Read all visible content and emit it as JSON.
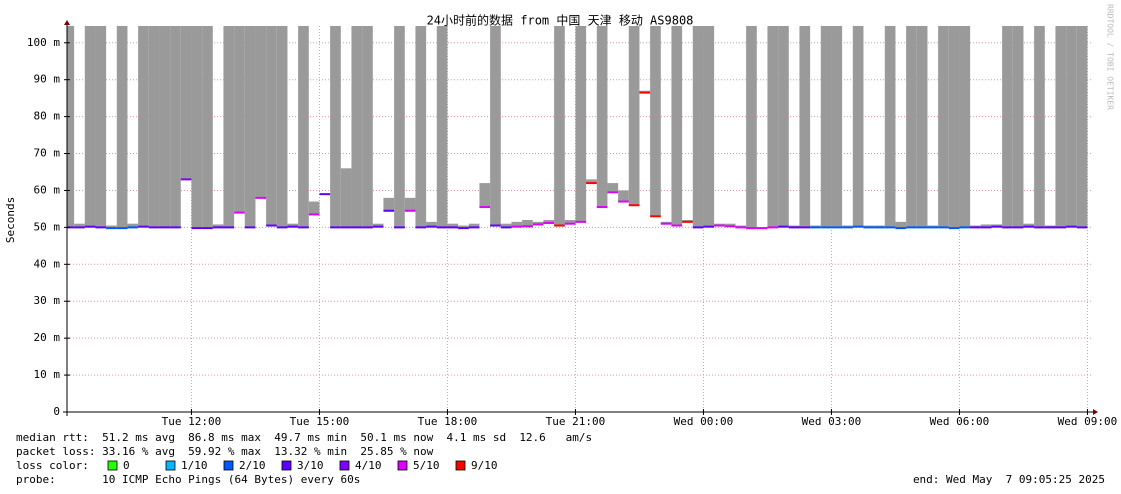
{
  "chart_data": {
    "type": "smokeping",
    "title": "24小时前的数据 from 中国 天津 移动 AS9808",
    "y_label": "Seconds",
    "watermark": "RRDTOOL / TOBI OETIKER",
    "xlim": [
      9.083,
      33.083
    ],
    "xticks": [
      {
        "value": 12,
        "label": "Tue 12:00"
      },
      {
        "value": 15,
        "label": "Tue 15:00"
      },
      {
        "value": 18,
        "label": "Tue 18:00"
      },
      {
        "value": 21,
        "label": "Tue 21:00"
      },
      {
        "value": 24,
        "label": "Wed 00:00"
      },
      {
        "value": 27,
        "label": "Wed 03:00"
      },
      {
        "value": 30,
        "label": "Wed 06:00"
      },
      {
        "value": 33,
        "label": "Wed 09:00"
      }
    ],
    "ylim": [
      0,
      0.104
    ],
    "yticks": [
      0,
      {
        "value": 0.01,
        "label": "10 m"
      },
      {
        "value": 0.02,
        "label": "20 m"
      },
      {
        "value": 0.03,
        "label": "30 m"
      },
      {
        "value": 0.04,
        "label": "40 m"
      },
      {
        "value": 0.05,
        "label": "50 m"
      },
      {
        "value": 0.06,
        "label": "60 m"
      },
      {
        "value": 0.07,
        "label": "70 m"
      },
      {
        "value": 0.08,
        "label": "80 m"
      },
      {
        "value": 0.09,
        "label": "90 m"
      },
      {
        "value": 0.1,
        "label": "100 m"
      }
    ],
    "grid": true,
    "smoke_color": "#9a9a9a",
    "x": [
      9.25,
      9.5,
      9.75,
      10,
      10.25,
      10.5,
      10.75,
      11,
      11.25,
      11.5,
      11.75,
      12,
      12.25,
      12.5,
      12.75,
      13,
      13.25,
      13.5,
      13.75,
      14,
      14.25,
      14.5,
      14.75,
      15,
      15.25,
      15.5,
      15.75,
      16,
      16.25,
      16.5,
      16.75,
      17,
      17.25,
      17.5,
      17.75,
      18,
      18.25,
      18.5,
      18.75,
      19,
      19.25,
      19.5,
      19.75,
      20,
      20.25,
      20.5,
      20.75,
      21,
      21.25,
      21.5,
      21.75,
      22,
      22.25,
      22.5,
      22.75,
      23,
      23.25,
      23.5,
      23.75,
      24,
      24.25,
      24.5,
      24.75,
      25,
      25.25,
      25.5,
      25.75,
      26,
      26.25,
      26.5,
      26.75,
      27,
      27.25,
      27.5,
      27.75,
      28,
      28.25,
      28.5,
      28.75,
      29,
      29.25,
      29.5,
      29.75,
      30,
      30.25,
      30.5,
      30.75,
      31,
      31.25,
      31.5,
      31.75,
      32,
      32.25,
      32.5,
      32.75,
      33
    ],
    "median": [
      0.05,
      0.05,
      0.0502,
      0.05,
      0.0498,
      0.0498,
      0.05,
      0.0502,
      0.05,
      0.05,
      0.05,
      0.063,
      0.0498,
      0.0498,
      0.05,
      0.05,
      0.054,
      0.05,
      0.058,
      0.0505,
      0.05,
      0.0502,
      0.05,
      0.0535,
      0.059,
      0.05,
      0.05,
      0.05,
      0.05,
      0.0502,
      0.0545,
      0.05,
      0.0545,
      0.05,
      0.0502,
      0.05,
      0.05,
      0.0498,
      0.05,
      0.0555,
      0.0505,
      0.05,
      0.0502,
      0.0503,
      0.0508,
      0.0512,
      0.0505,
      0.051,
      0.0515,
      0.062,
      0.0555,
      0.0595,
      0.057,
      0.056,
      0.0865,
      0.053,
      0.051,
      0.0505,
      0.0515,
      0.05,
      0.0502,
      0.0505,
      0.0503,
      0.05,
      0.0498,
      0.0498,
      0.05,
      0.0502,
      0.05,
      0.05,
      0.05,
      0.05,
      0.05,
      0.05,
      0.0502,
      0.05,
      0.05,
      0.05,
      0.0498,
      0.05,
      0.05,
      0.05,
      0.05,
      0.0498,
      0.05,
      0.05,
      0.05,
      0.0502,
      0.05,
      0.05,
      0.0502,
      0.05,
      0.05,
      0.05,
      0.0502,
      0.05
    ],
    "smoke_max": [
      0.2,
      0.051,
      0.2,
      0.2,
      0.0505,
      0.2,
      0.051,
      0.2,
      0.2,
      0.2,
      0.2,
      0.2,
      0.2,
      0.2,
      0.0508,
      0.2,
      0.2,
      0.2,
      0.2,
      0.2,
      0.2,
      0.051,
      0.2,
      0.057,
      0.059,
      0.2,
      0.066,
      0.2,
      0.2,
      0.051,
      0.058,
      0.2,
      0.058,
      0.2,
      0.0515,
      0.2,
      0.051,
      0.0505,
      0.051,
      0.062,
      0.2,
      0.051,
      0.0515,
      0.052,
      0.0515,
      0.052,
      0.2,
      0.052,
      0.2,
      0.063,
      0.2,
      0.062,
      0.06,
      0.2,
      0.087,
      0.2,
      0.0515,
      0.2,
      0.052,
      0.2,
      0.2,
      0.051,
      0.051,
      0.0505,
      0.2,
      0.05,
      0.2,
      0.2,
      0.0505,
      0.2,
      0.0505,
      0.2,
      0.2,
      0.0505,
      0.2,
      0.0505,
      0.0505,
      0.2,
      0.0515,
      0.2,
      0.2,
      0.0505,
      0.2,
      0.2,
      0.2,
      0.0505,
      0.0508,
      0.0508,
      0.2,
      0.2,
      0.051,
      0.2,
      0.0505,
      0.2,
      0.2,
      0.2
    ],
    "loss": [
      3,
      3,
      3,
      3,
      2,
      2,
      2,
      3,
      3,
      3,
      3,
      4,
      3,
      3,
      3,
      3,
      5,
      3,
      5,
      3,
      3,
      3,
      3,
      5,
      3,
      3,
      3,
      3,
      3,
      3,
      3,
      3,
      5,
      3,
      3,
      3,
      3,
      3,
      3,
      5,
      3,
      3,
      5,
      5,
      5,
      5,
      9,
      5,
      5,
      9,
      5,
      5,
      5,
      9,
      9,
      9,
      5,
      5,
      9,
      3,
      3,
      5,
      5,
      5,
      5,
      5,
      5,
      3,
      3,
      3,
      2,
      2,
      2,
      2,
      2,
      2,
      2,
      2,
      2,
      2,
      2,
      2,
      2,
      2,
      2,
      3,
      3,
      3,
      3,
      3,
      3,
      3,
      3,
      3,
      3,
      3
    ],
    "stats": [
      "median rtt:  51.2 ms avg  86.8 ms max  49.7 ms min  50.1 ms now  4.1 ms sd  12.6   am/s",
      "packet loss: 33.16 % avg  59.92 % max  13.32 % min  25.85 % now"
    ],
    "loss_legend": {
      "label": "loss color:",
      "items": [
        {
          "value": 0,
          "label": "0",
          "color": "#26ff00"
        },
        {
          "value": 1,
          "label": "1/10",
          "color": "#00b8ff"
        },
        {
          "value": 2,
          "label": "2/10",
          "color": "#0059ff"
        },
        {
          "value": 3,
          "label": "3/10",
          "color": "#5e00ff"
        },
        {
          "value": 4,
          "label": "4/10",
          "color": "#7e00ff"
        },
        {
          "value": 5,
          "label": "5/10",
          "color": "#dd00ff"
        },
        {
          "value": 9,
          "label": "9/10",
          "color": "#ff0000"
        }
      ]
    },
    "probe": "probe:       10 ICMP Echo Pings (64 Bytes) every 60s",
    "end": "end: Wed May  7 09:05:25 2025"
  }
}
